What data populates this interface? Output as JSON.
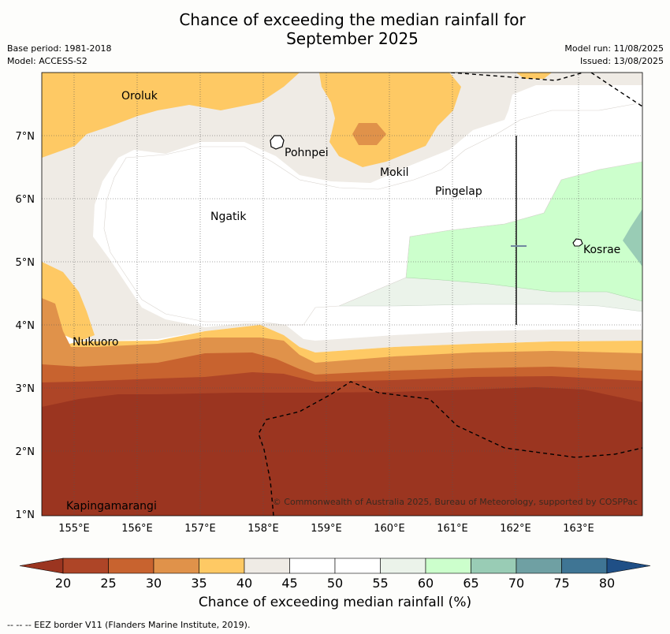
{
  "header": {
    "title_line1": "Chance of exceeding the median rainfall for",
    "title_line2": "September 2025",
    "base_period": "Base period: 1981-2018",
    "model": "Model: ACCESS-S2",
    "model_run": "Model run: 11/08/2025",
    "issued": "Issued: 13/08/2025"
  },
  "map": {
    "lon_labels": [
      "155°E",
      "156°E",
      "157°E",
      "158°E",
      "159°E",
      "160°E",
      "161°E",
      "162°E",
      "163°E"
    ],
    "lat_labels": [
      "7°N",
      "6°N",
      "5°N",
      "4°N",
      "3°N",
      "2°N",
      "1°N"
    ],
    "places": {
      "oroluk": "Oroluk",
      "pohnpei": "Pohnpei",
      "mokil": "Mokil",
      "pingelap": "Pingelap",
      "ngatik": "Ngatik",
      "kosrae": "Kosrae",
      "nukuoro": "Nukuoro",
      "kapingamarangi": "Kapingamarangi"
    },
    "copyright": "© Commonwealth of Australia 2025, Bureau of Meteorology, supported by COSPPac"
  },
  "legend": {
    "title": "Chance of exceeding median rainfall (%)",
    "ticks": [
      "20",
      "25",
      "30",
      "35",
      "40",
      "45",
      "50",
      "55",
      "60",
      "65",
      "70",
      "75",
      "80"
    ],
    "colors": [
      "#9b3520",
      "#ae4527",
      "#c8632f",
      "#e0924a",
      "#fec964",
      "#efebe5",
      "#ffffff",
      "#ffffff",
      "#ebf3ea",
      "#ccffcc",
      "#99ccb5",
      "#6fa0a3",
      "#3f7594",
      "#1f4f86"
    ]
  },
  "footnote": "--  --  -- EEZ border V11 (Flanders Marine Institute, 2019)."
}
